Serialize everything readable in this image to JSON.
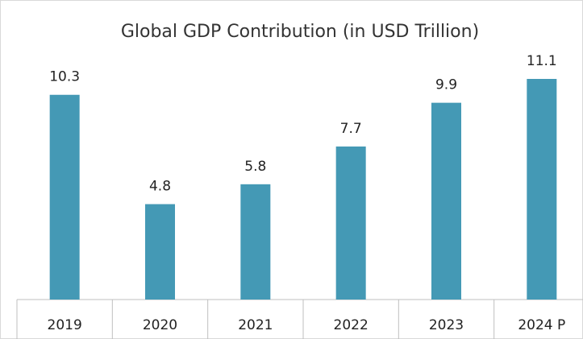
{
  "chart_data": {
    "type": "bar",
    "title": "Global GDP Contribution (in USD Trillion)",
    "categories": [
      "2019",
      "2020",
      "2021",
      "2022",
      "2023",
      "2024 P"
    ],
    "values": [
      10.3,
      4.8,
      5.8,
      7.7,
      9.9,
      11.1
    ],
    "color": "#4499b5"
  }
}
